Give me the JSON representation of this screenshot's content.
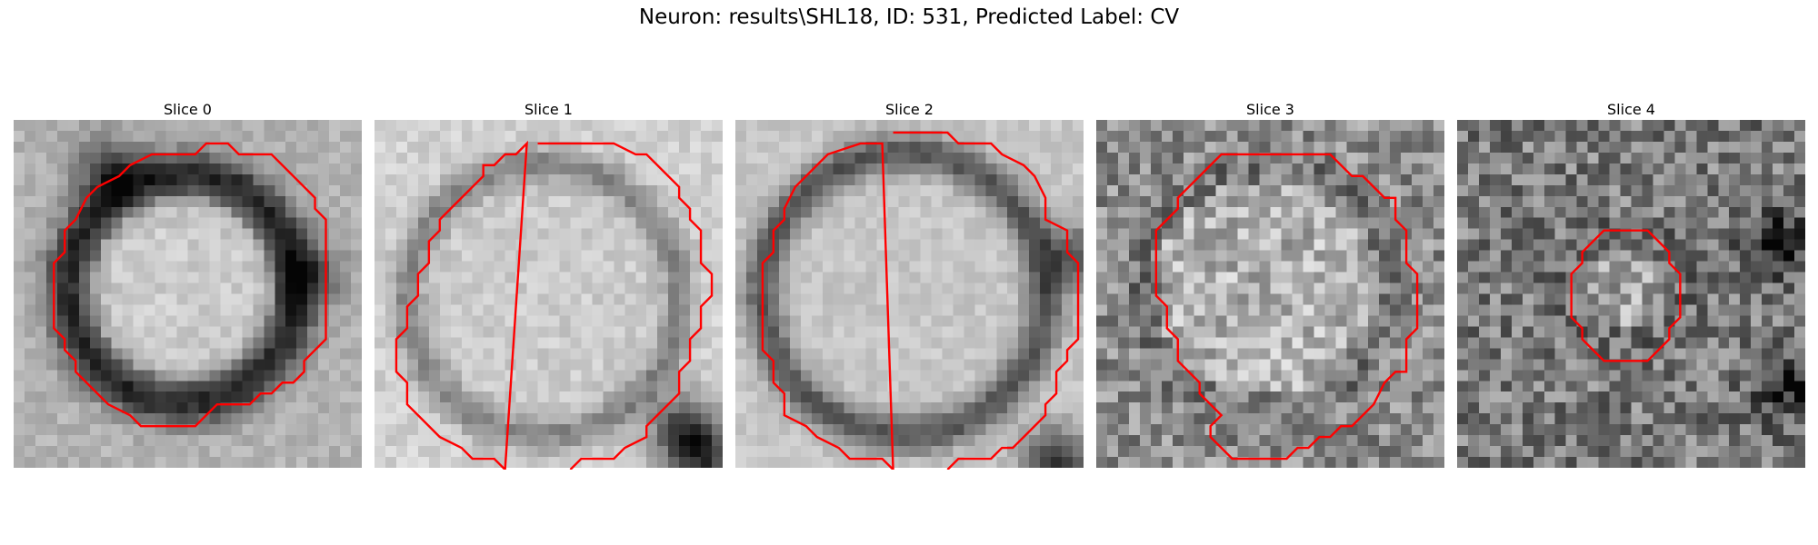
{
  "figure": {
    "suptitle": "Neuron: results\\SHL18, ID: 531, Predicted Label: CV"
  },
  "panels": [
    {
      "title": "Slice 0",
      "contour_color": "#ff0000",
      "colormap": "gray"
    },
    {
      "title": "Slice 1",
      "contour_color": "#ff0000",
      "colormap": "gray"
    },
    {
      "title": "Slice 2",
      "contour_color": "#ff0000",
      "colormap": "gray"
    },
    {
      "title": "Slice 3",
      "contour_color": "#ff0000",
      "colormap": "gray"
    },
    {
      "title": "Slice 4",
      "contour_color": "#ff0000",
      "colormap": "gray"
    }
  ]
}
